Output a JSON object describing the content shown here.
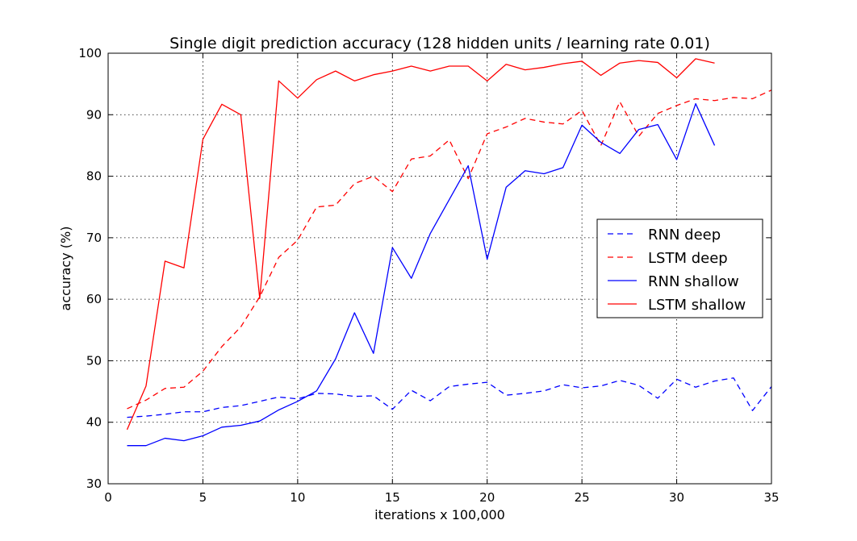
{
  "chart_data": {
    "type": "line",
    "title": "Single digit prediction accuracy (128 hidden units / learning rate 0.01)",
    "xlabel": "iterations x 100,000",
    "ylabel": "accuracy (%)",
    "xlim": [
      0,
      35
    ],
    "ylim": [
      30,
      100
    ],
    "xticks": [
      0,
      5,
      10,
      15,
      20,
      25,
      30,
      35
    ],
    "yticks": [
      30,
      40,
      50,
      60,
      70,
      80,
      90,
      100
    ],
    "grid": true,
    "legend_position": "center-right",
    "series": [
      {
        "name": "RNN deep",
        "color": "#0000ff",
        "style": "dashed",
        "x": [
          1,
          2,
          3,
          4,
          5,
          6,
          7,
          8,
          9,
          10,
          11,
          12,
          13,
          14,
          15,
          16,
          17,
          18,
          19,
          20,
          21,
          22,
          23,
          24,
          25,
          26,
          27,
          28,
          29,
          30,
          31,
          32,
          33,
          34,
          35
        ],
        "values": [
          40.8,
          41.0,
          41.3,
          41.7,
          41.7,
          42.4,
          42.7,
          43.4,
          44.1,
          43.8,
          44.7,
          44.6,
          44.2,
          44.3,
          42.1,
          45.2,
          43.5,
          45.8,
          46.2,
          46.5,
          44.4,
          44.7,
          45.1,
          46.1,
          45.6,
          45.9,
          46.8,
          46.0,
          43.9,
          47.0,
          45.7,
          46.7,
          47.2,
          41.9,
          45.8
        ]
      },
      {
        "name": "LSTM deep",
        "color": "#ff0000",
        "style": "dashed",
        "x": [
          1,
          2,
          3,
          4,
          5,
          6,
          7,
          8,
          9,
          10,
          11,
          12,
          13,
          14,
          15,
          16,
          17,
          18,
          19,
          20,
          21,
          22,
          23,
          24,
          25,
          26,
          27,
          28,
          29,
          30,
          31,
          32,
          33,
          34,
          35
        ],
        "values": [
          42.2,
          43.6,
          45.5,
          45.7,
          48.3,
          52.3,
          55.5,
          60.4,
          66.8,
          69.6,
          75.0,
          75.3,
          78.8,
          80.0,
          77.5,
          82.8,
          83.3,
          85.9,
          79.6,
          86.9,
          88.0,
          89.4,
          88.8,
          88.5,
          90.7,
          85.0,
          92.1,
          86.5,
          90.2,
          91.5,
          92.6,
          92.3,
          92.8,
          92.6,
          94.0
        ]
      },
      {
        "name": "RNN shallow",
        "color": "#0000ff",
        "style": "solid",
        "x": [
          1,
          2,
          3,
          4,
          5,
          6,
          7,
          8,
          9,
          10,
          11,
          12,
          13,
          14,
          15,
          16,
          17,
          18,
          19,
          20,
          21,
          22,
          23,
          24,
          25,
          26,
          27,
          28,
          29,
          30,
          31,
          32
        ],
        "values": [
          36.2,
          36.2,
          37.4,
          37.0,
          37.8,
          39.2,
          39.5,
          40.2,
          42.0,
          43.4,
          45.1,
          50.3,
          57.8,
          51.2,
          68.4,
          63.4,
          70.7,
          76.2,
          81.7,
          66.5,
          78.2,
          80.9,
          80.4,
          81.4,
          88.3,
          85.5,
          83.7,
          87.6,
          88.4,
          82.7,
          91.8,
          85.0
        ]
      },
      {
        "name": "LSTM shallow",
        "color": "#ff0000",
        "style": "solid",
        "x": [
          1,
          2,
          3,
          4,
          5,
          6,
          7,
          8,
          9,
          10,
          11,
          12,
          13,
          14,
          15,
          16,
          17,
          18,
          19,
          20,
          21,
          22,
          23,
          24,
          25,
          26,
          27,
          28,
          29,
          30,
          31,
          32
        ],
        "values": [
          38.8,
          45.9,
          66.2,
          65.1,
          86.0,
          91.7,
          90.0,
          60.1,
          95.5,
          92.7,
          95.7,
          97.1,
          95.5,
          96.5,
          97.1,
          97.9,
          97.1,
          97.9,
          97.9,
          95.5,
          98.2,
          97.3,
          97.7,
          98.3,
          98.7,
          96.4,
          98.4,
          98.8,
          98.5,
          96.0,
          99.1,
          98.4
        ]
      }
    ]
  }
}
